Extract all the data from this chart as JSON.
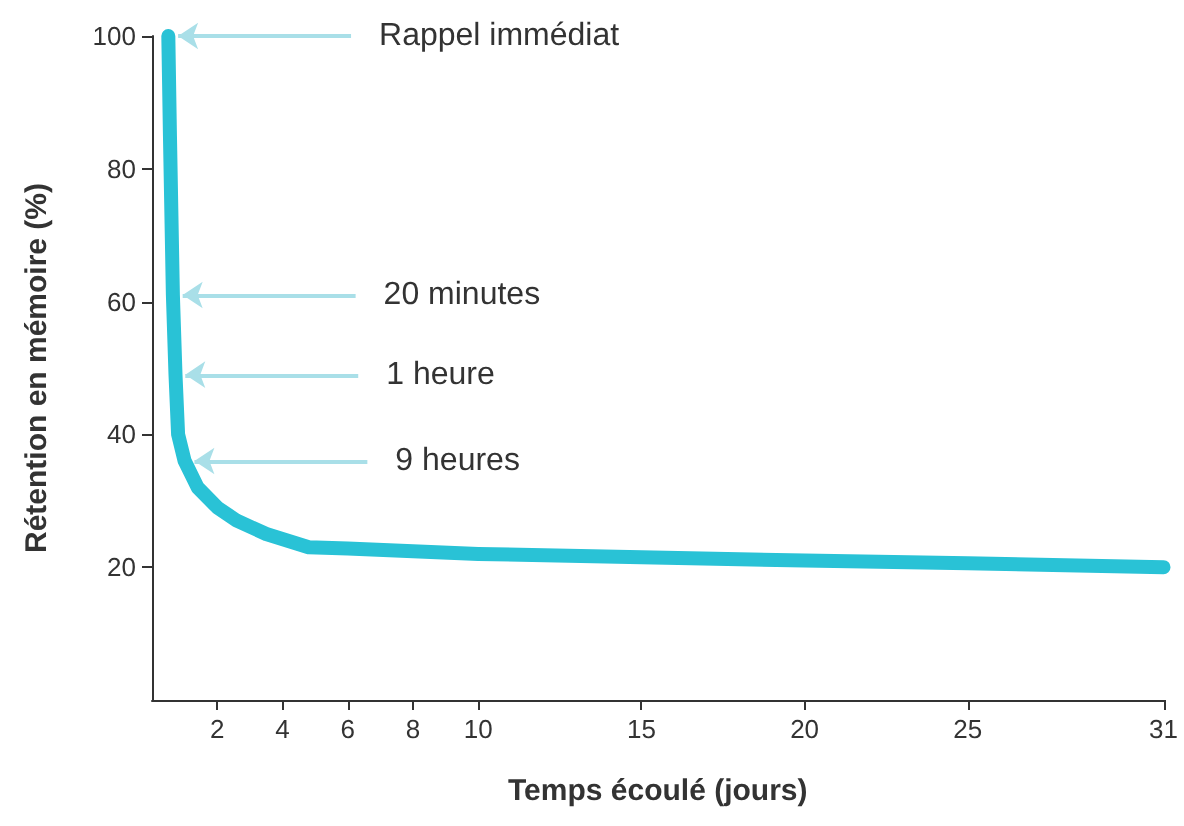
{
  "chart_data": {
    "type": "line",
    "xlabel": "Temps écoulé (jours)",
    "ylabel": "Rétention en mémoire (%)",
    "x": [
      0.5,
      0.55,
      0.64,
      0.72,
      0.8,
      1.0,
      1.4,
      2,
      2.6,
      3.5,
      4.8,
      6,
      10,
      15,
      20,
      25,
      31
    ],
    "series": [
      {
        "color": "#29c2d6",
        "values": [
          100,
          85,
          61,
          49,
          40,
          36,
          32,
          29,
          27,
          25,
          23,
          22.8,
          22,
          21.5,
          21,
          20.6,
          20
        ]
      }
    ],
    "xlim": [
      0,
      31
    ],
    "xticks": [
      2,
      4,
      6,
      8,
      10,
      15,
      20,
      25,
      31
    ],
    "ylim": [
      0,
      100
    ],
    "yticks": [
      20,
      40,
      60,
      80,
      100
    ],
    "grid": false,
    "line_style": "solid",
    "annotations": [
      {
        "text": "Rappel immédiat",
        "x": 0.5,
        "y": 100
      },
      {
        "text": "20 minutes",
        "x": 0.64,
        "y": 61
      },
      {
        "text": "1 heure",
        "x": 0.72,
        "y": 49
      },
      {
        "text": "9 heures",
        "x": 1.0,
        "y": 36
      }
    ]
  }
}
